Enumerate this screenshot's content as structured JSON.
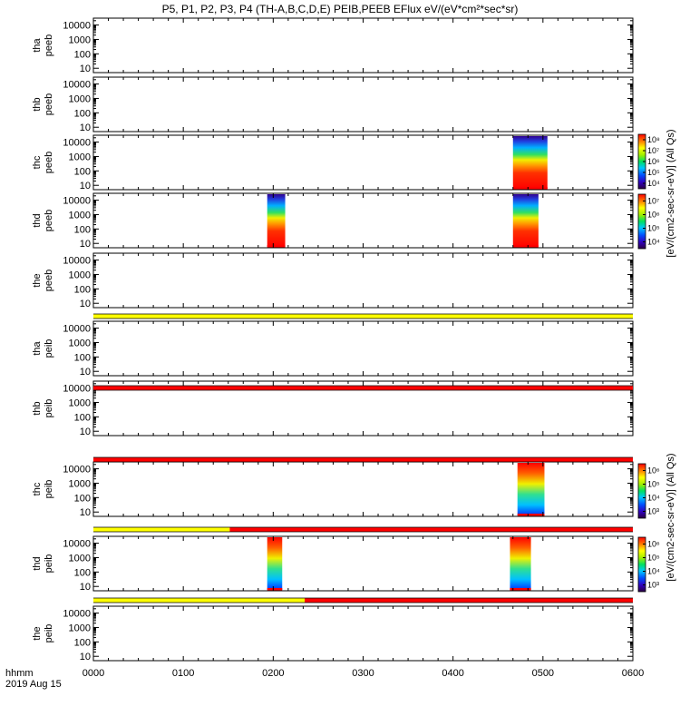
{
  "title": "P5, P1, P2, P3, P4 (TH-A,B,C,D,E) PEIB,PEEB EFlux eV/(eV*cm²*sec*sr)",
  "time_axis": {
    "label_line1": "hhmm",
    "label_line2": "2019 Aug 15",
    "ticks": [
      "0000",
      "0100",
      "0200",
      "0300",
      "0400",
      "0500",
      "0600"
    ],
    "range_minutes": [
      0,
      360
    ]
  },
  "colorbars": [
    {
      "label": "[eV/(cm2-sec-sr-eV)] (All Qs)",
      "ticks": [
        "10⁴",
        "10⁵",
        "10⁶",
        "10⁷",
        "10⁸"
      ]
    },
    {
      "label": "[eV/(cm2-sec-sr-eV)] (All Qs)",
      "ticks": [
        "10⁴",
        "10⁵",
        "10⁶",
        "10⁷"
      ]
    },
    {
      "label": "[eV/(cm2-sec-sr-eV)] (All Qs)",
      "ticks": [
        "10³",
        "10⁴",
        "10⁵",
        "10⁶"
      ]
    },
    {
      "label": "[eV/(cm2-sec-sr-eV)] (All Qs)",
      "ticks": [
        "10³",
        "10⁴",
        "10⁵",
        "10⁶"
      ]
    }
  ],
  "chart_data": {
    "type": "heatmap",
    "y_scale": "log",
    "y_range_eV": [
      5,
      30000
    ],
    "y_ticks": [
      "10",
      "100",
      "1000",
      "10000"
    ],
    "panels": [
      {
        "probe": "tha",
        "product": "peeb",
        "data_intervals": [],
        "colorbar": null
      },
      {
        "probe": "thb",
        "product": "peeb",
        "data_intervals": [],
        "colorbar": null
      },
      {
        "probe": "thc",
        "product": "peeb",
        "data_intervals": [
          [
            280,
            303
          ]
        ],
        "colorbar": 0
      },
      {
        "probe": "thd",
        "product": "peeb",
        "data_intervals": [
          [
            116,
            128
          ],
          [
            280,
            297
          ]
        ],
        "colorbar": 1
      },
      {
        "probe": "the",
        "product": "peeb",
        "data_intervals": [],
        "colorbar": null
      },
      {
        "probe": "tha",
        "product": "peib",
        "data_intervals": [],
        "colorbar": null
      },
      {
        "probe": "thb",
        "product": "peib",
        "data_intervals": [],
        "colorbar": null
      },
      {
        "probe": "thc",
        "product": "peib",
        "data_intervals": [
          [
            283,
            301
          ]
        ],
        "colorbar": 2
      },
      {
        "probe": "thd",
        "product": "peib",
        "data_intervals": [
          [
            116,
            126
          ],
          [
            278,
            292
          ]
        ],
        "colorbar": 3
      },
      {
        "probe": "the",
        "product": "peib",
        "data_intervals": [],
        "colorbar": null
      }
    ],
    "status_bars": [
      {
        "after_panel": "the peeb",
        "segments": [
          {
            "from": 0,
            "to": 360,
            "color": "#ffff00"
          }
        ]
      },
      {
        "after_panel": "tha peib",
        "segments": [
          {
            "from": 0,
            "to": 360,
            "color": "#ff0000"
          }
        ]
      },
      {
        "after_panel": "thb peib",
        "segments": [
          {
            "from": 0,
            "to": 360,
            "color": "#ff0000"
          }
        ]
      },
      {
        "after_panel": "thc peib",
        "segments": [
          {
            "from": 0,
            "to": 91,
            "color": "#ffff00"
          },
          {
            "from": 91,
            "to": 360,
            "color": "#ff0000"
          }
        ]
      },
      {
        "after_panel": "thd peib",
        "segments": [
          {
            "from": 0,
            "to": 141,
            "color": "#ffff00"
          },
          {
            "from": 141,
            "to": 360,
            "color": "#ff0000"
          }
        ]
      }
    ]
  }
}
